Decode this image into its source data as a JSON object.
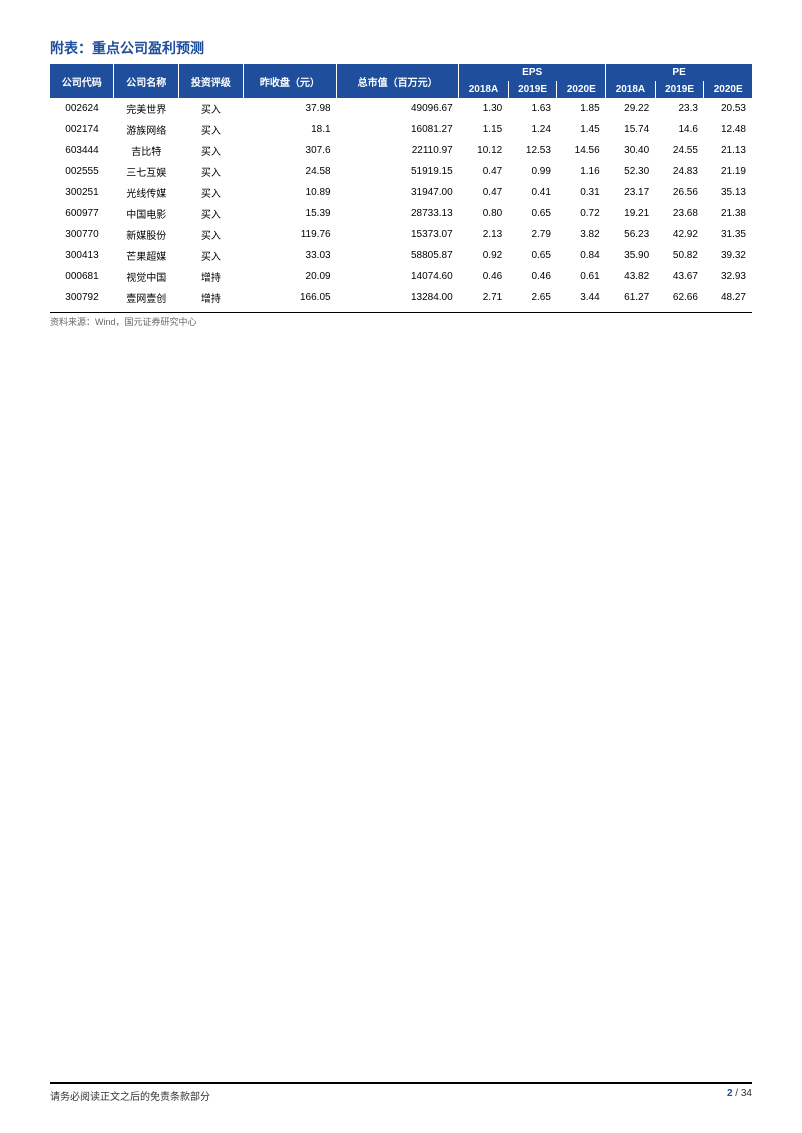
{
  "title": "附表：重点公司盈利预测",
  "columns": {
    "code": "公司代码",
    "name": "公司名称",
    "rating": "投资评级",
    "close": "昨收盘（元）",
    "mktcap": "总市值（百万元）",
    "eps": "EPS",
    "pe": "PE",
    "y2018a": "2018A",
    "y2019e": "2019E",
    "y2020e": "2020E"
  },
  "rows": [
    {
      "code": "002624",
      "name": "完美世界",
      "rating": "买入",
      "close": "37.98",
      "mktcap": "49096.67",
      "eps18": "1.30",
      "eps19": "1.63",
      "eps20": "1.85",
      "pe18": "29.22",
      "pe19": "23.3",
      "pe20": "20.53"
    },
    {
      "code": "002174",
      "name": "游族网络",
      "rating": "买入",
      "close": "18.1",
      "mktcap": "16081.27",
      "eps18": "1.15",
      "eps19": "1.24",
      "eps20": "1.45",
      "pe18": "15.74",
      "pe19": "14.6",
      "pe20": "12.48"
    },
    {
      "code": "603444",
      "name": "吉比特",
      "rating": "买入",
      "close": "307.6",
      "mktcap": "22110.97",
      "eps18": "10.12",
      "eps19": "12.53",
      "eps20": "14.56",
      "pe18": "30.40",
      "pe19": "24.55",
      "pe20": "21.13"
    },
    {
      "code": "002555",
      "name": "三七互娱",
      "rating": "买入",
      "close": "24.58",
      "mktcap": "51919.15",
      "eps18": "0.47",
      "eps19": "0.99",
      "eps20": "1.16",
      "pe18": "52.30",
      "pe19": "24.83",
      "pe20": "21.19"
    },
    {
      "code": "300251",
      "name": "光线传媒",
      "rating": "买入",
      "close": "10.89",
      "mktcap": "31947.00",
      "eps18": "0.47",
      "eps19": "0.41",
      "eps20": "0.31",
      "pe18": "23.17",
      "pe19": "26.56",
      "pe20": "35.13"
    },
    {
      "code": "600977",
      "name": "中国电影",
      "rating": "买入",
      "close": "15.39",
      "mktcap": "28733.13",
      "eps18": "0.80",
      "eps19": "0.65",
      "eps20": "0.72",
      "pe18": "19.21",
      "pe19": "23.68",
      "pe20": "21.38"
    },
    {
      "code": "300770",
      "name": "新媒股份",
      "rating": "买入",
      "close": "119.76",
      "mktcap": "15373.07",
      "eps18": "2.13",
      "eps19": "2.79",
      "eps20": "3.82",
      "pe18": "56.23",
      "pe19": "42.92",
      "pe20": "31.35"
    },
    {
      "code": "300413",
      "name": "芒果超媒",
      "rating": "买入",
      "close": "33.03",
      "mktcap": "58805.87",
      "eps18": "0.92",
      "eps19": "0.65",
      "eps20": "0.84",
      "pe18": "35.90",
      "pe19": "50.82",
      "pe20": "39.32"
    },
    {
      "code": "000681",
      "name": "视觉中国",
      "rating": "增持",
      "close": "20.09",
      "mktcap": "14074.60",
      "eps18": "0.46",
      "eps19": "0.46",
      "eps20": "0.61",
      "pe18": "43.82",
      "pe19": "43.67",
      "pe20": "32.93"
    },
    {
      "code": "300792",
      "name": "壹网壹创",
      "rating": "增持",
      "close": "166.05",
      "mktcap": "13284.00",
      "eps18": "2.71",
      "eps19": "2.65",
      "eps20": "3.44",
      "pe18": "61.27",
      "pe19": "62.66",
      "pe20": "48.27"
    }
  ],
  "source": "资料来源：Wind，国元证券研究中心",
  "footer": {
    "disclaimer": "请务必阅读正文之后的免责条款部分",
    "page": "2",
    "sep": " / ",
    "total": "34"
  },
  "colors": {
    "header_bg": "#1f4e9c",
    "header_fg": "#ffffff",
    "title_color": "#1f4e9c"
  }
}
